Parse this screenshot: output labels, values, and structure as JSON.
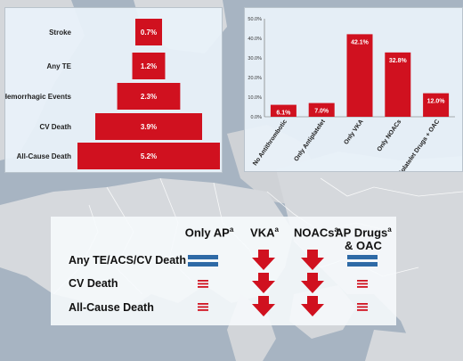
{
  "chart_data": [
    {
      "type": "bar",
      "orientation": "horizontal",
      "categories": [
        "Stroke",
        "Any TE",
        "Hemorrhagic Events",
        "CV Death",
        "All-Cause Death"
      ],
      "values": [
        0.7,
        1.2,
        2.3,
        3.9,
        5.2
      ],
      "data_labels": [
        "0.7%",
        "1.2%",
        "2.3%",
        "3.9%",
        "5.2%"
      ],
      "color": "#d0111f"
    },
    {
      "type": "bar",
      "categories": [
        "No Antithrombotic",
        "Only Antiplatelet",
        "Only VKA",
        "Only NOACs",
        "Antiplatelet Drugs + OAC"
      ],
      "values": [
        6.1,
        7.0,
        42.1,
        32.8,
        12.0
      ],
      "data_labels": [
        "6.1%",
        "7.0%",
        "42.1%",
        "32.8%",
        "12.0%"
      ],
      "yticks": [
        "0.0%",
        "10.0%",
        "20.0%",
        "30.0%",
        "40.0%",
        "50.0%"
      ],
      "ylim": [
        0,
        50
      ],
      "grid": false,
      "color": "#d0111f"
    }
  ],
  "table": {
    "superscript": "a",
    "columns": [
      {
        "label_line1": "Only AP",
        "label_line2": "",
        "sup_after_line1": true
      },
      {
        "label_line1": "VKA",
        "label_line2": "",
        "sup_after_line1": true
      },
      {
        "label_line1": "NOACs",
        "label_line2": "",
        "sup_after_line1": true
      },
      {
        "label_line1": "AP Drugs",
        "label_line2": "& OAC",
        "sup_after_line1": true
      }
    ],
    "rows": [
      {
        "label": "Any TE/ACS/CV Death",
        "symbols": [
          "equal-thick-icon",
          "down-arrow-icon",
          "down-arrow-icon",
          "equal-thick-icon"
        ]
      },
      {
        "label": "CV Death",
        "symbols": [
          "equal-thin-icon",
          "down-arrow-icon",
          "down-arrow-icon",
          "equal-thin-icon"
        ]
      },
      {
        "label": "All-Cause Death",
        "symbols": [
          "equal-thin-icon",
          "down-arrow-icon",
          "down-arrow-icon",
          "equal-thin-icon"
        ]
      }
    ]
  },
  "colors": {
    "bar": "#d0111f",
    "equal": "#2e6aa6",
    "arrow": "#d0111f"
  }
}
